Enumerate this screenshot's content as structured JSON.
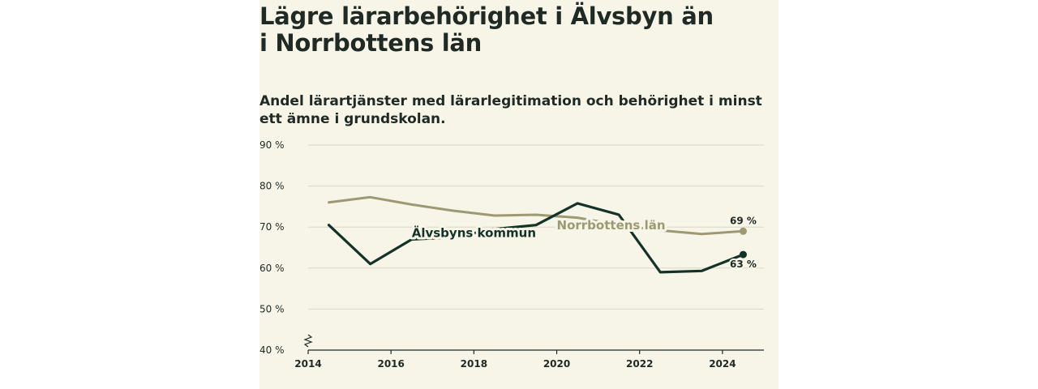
{
  "chart_data": {
    "type": "line",
    "title": "Lägre lärarbehörighet i Älvsbyn än i Norrbottens län",
    "subtitle": "Andel lärartjänster med lärarlegitimation och behörighet i minst ett ämne i grundskolan.",
    "x": [
      2014.5,
      2015.5,
      2016.5,
      2017.5,
      2018.5,
      2019.5,
      2020.5,
      2021.5,
      2022.5,
      2023.5,
      2024.5
    ],
    "xlim": [
      2014,
      2025
    ],
    "x_ticks": [
      2014,
      2016,
      2018,
      2020,
      2022,
      2024
    ],
    "ylim": [
      40,
      90
    ],
    "y_ticks": [
      40,
      50,
      60,
      70,
      80,
      90
    ],
    "y_tick_labels": [
      "40 %",
      "50 %",
      "60 %",
      "70 %",
      "80 %",
      "90 %"
    ],
    "axis_break": true,
    "grid": true,
    "series": [
      {
        "name": "Norrbottens län",
        "color": "#9c9a73",
        "values": [
          76,
          77.3,
          75.5,
          74,
          72.8,
          73,
          72.3,
          70.5,
          69.2,
          68.3,
          69
        ],
        "end_label": "69 %"
      },
      {
        "name": "Älvsbyns kommun",
        "color": "#143328",
        "values": [
          70.5,
          61,
          67,
          67.5,
          69.5,
          70.5,
          75.8,
          73,
          59,
          59.3,
          63.3
        ],
        "end_label": "63 %"
      }
    ]
  }
}
